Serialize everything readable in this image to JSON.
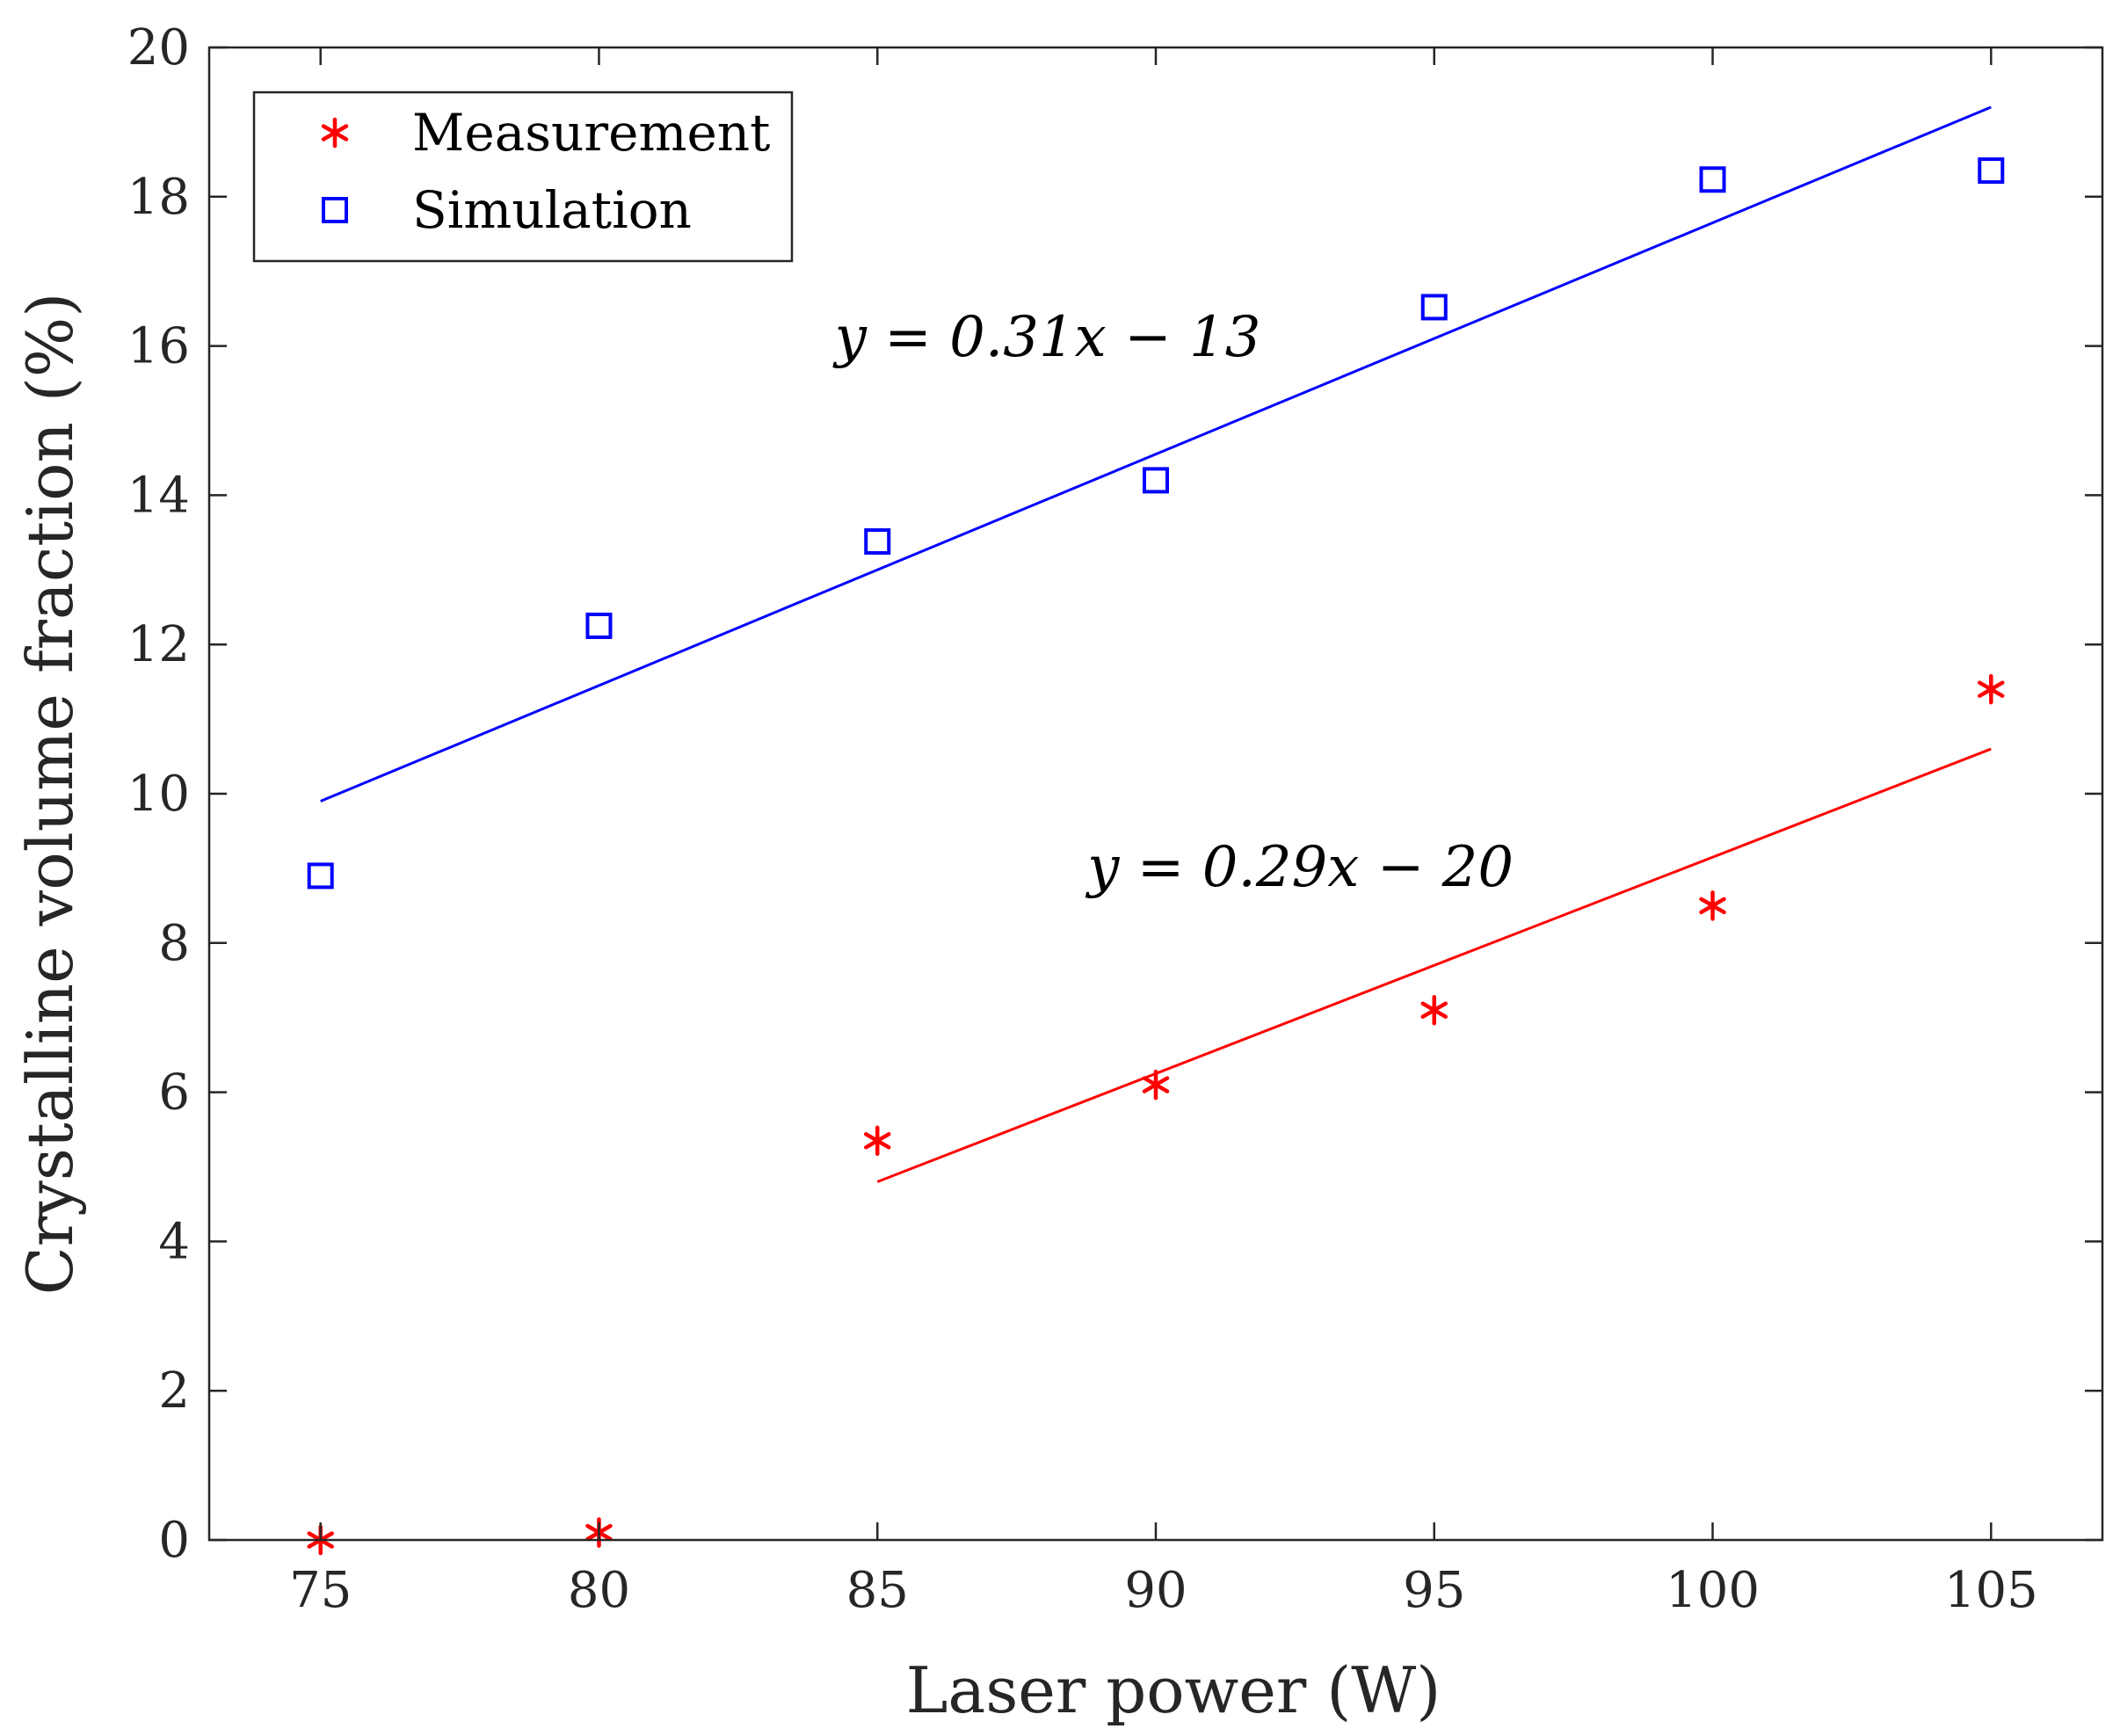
{
  "chart_data": {
    "type": "scatter",
    "title": "",
    "xlabel": "Laser power (W)",
    "ylabel": "Crystalline volume fraction (%)",
    "xlim": [
      73,
      107
    ],
    "ylim": [
      0,
      20
    ],
    "xticks": [
      75,
      80,
      85,
      90,
      95,
      100,
      105
    ],
    "yticks": [
      0,
      2,
      4,
      6,
      8,
      10,
      12,
      14,
      16,
      18,
      20
    ],
    "grid": false,
    "legend_position": "top-left",
    "series": [
      {
        "name": "Measurement",
        "marker": "asterisk",
        "color": "#ff0000",
        "x": [
          75,
          80,
          85,
          90,
          95,
          100,
          105
        ],
        "y": [
          0,
          0.1,
          5.35,
          6.1,
          7.1,
          8.5,
          11.4
        ],
        "fit": {
          "x": [
            85,
            105
          ],
          "y": [
            4.8,
            10.6
          ],
          "label": "y = 0.29x − 20"
        }
      },
      {
        "name": "Simulation",
        "marker": "square",
        "color": "#0000ff",
        "x": [
          75,
          80,
          85,
          90,
          95,
          100,
          105
        ],
        "y": [
          8.9,
          12.25,
          13.38,
          14.2,
          16.52,
          18.23,
          18.35
        ],
        "fit": {
          "x": [
            75,
            105
          ],
          "y": [
            9.9,
            19.2
          ],
          "label": "y = 0.31x − 13"
        }
      }
    ]
  }
}
